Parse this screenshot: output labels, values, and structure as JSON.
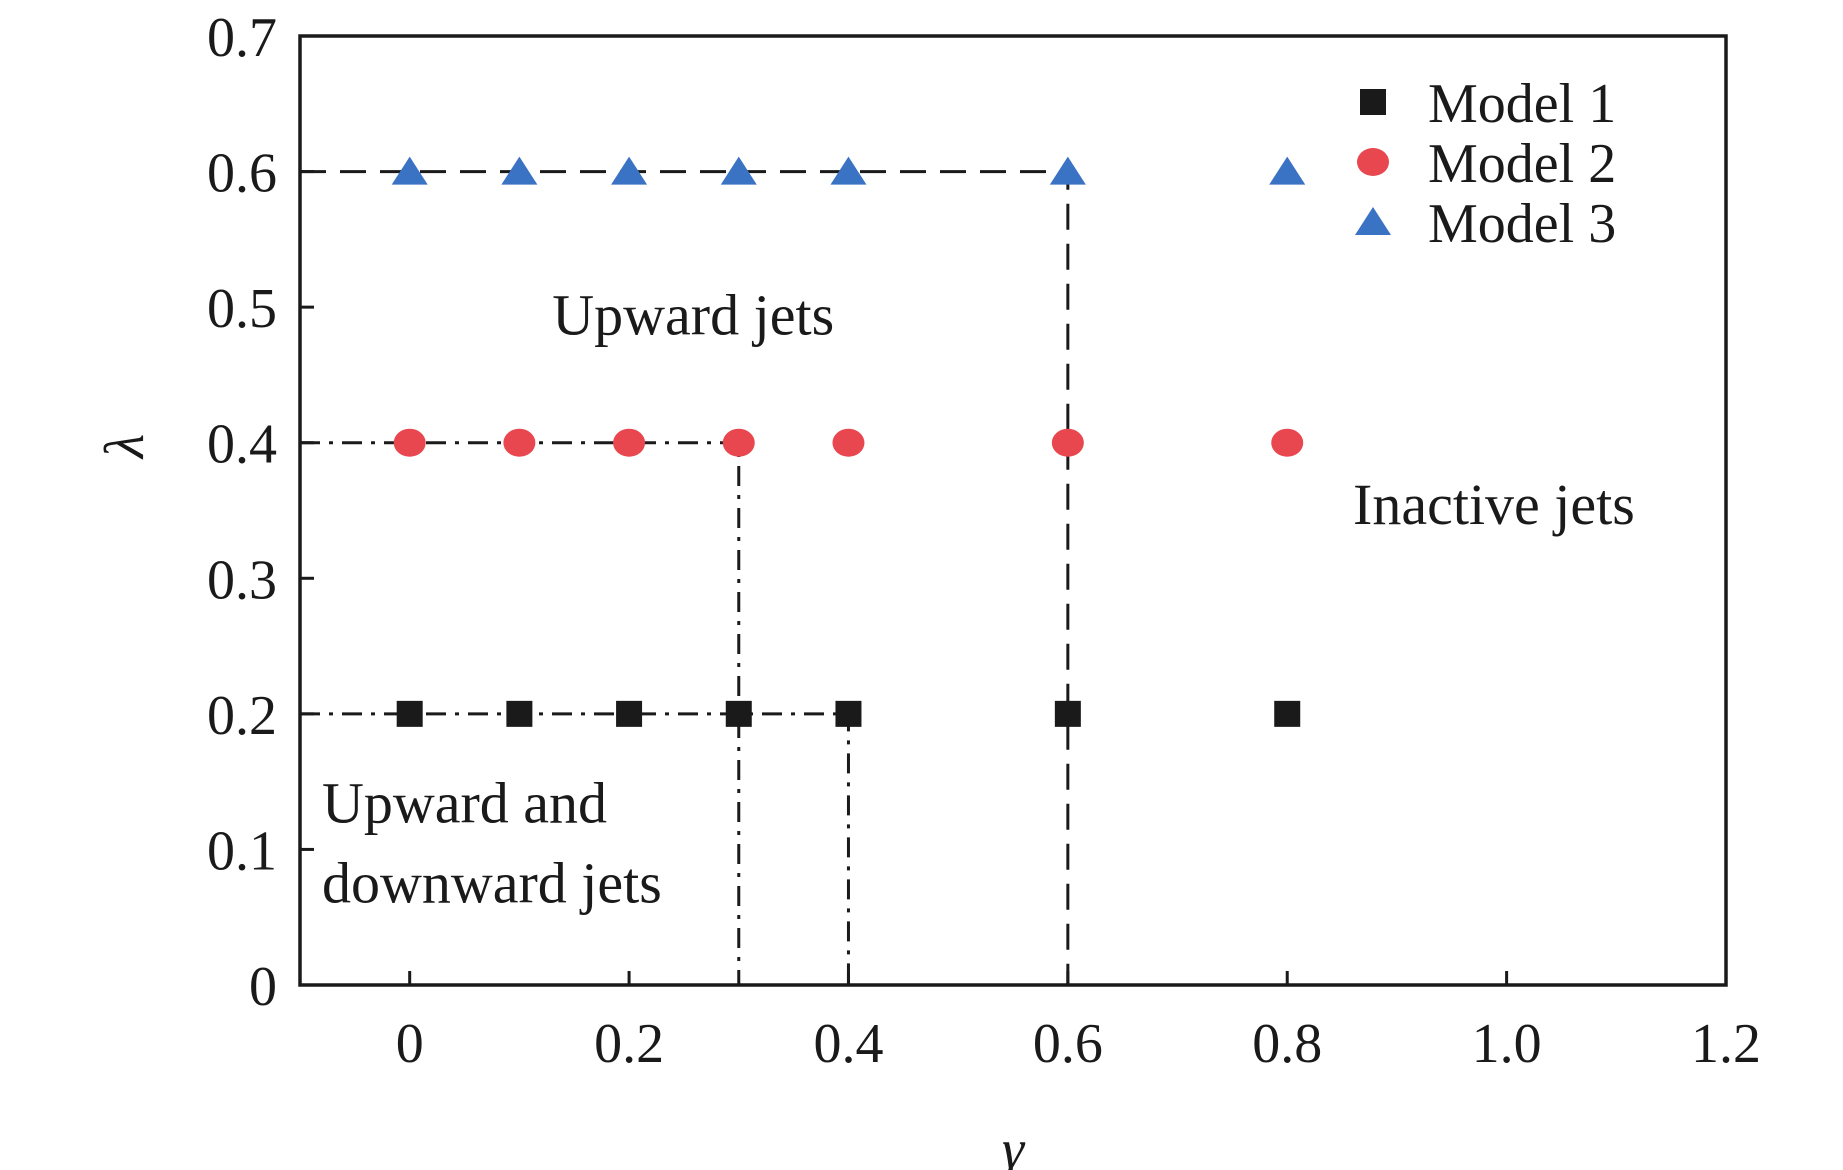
{
  "chart_data": {
    "type": "scatter",
    "title": "",
    "xlabel": "γ",
    "ylabel": "λ",
    "xlim": [
      -0.1,
      1.2
    ],
    "ylim": [
      0,
      0.7
    ],
    "xticks": [
      0,
      0.2,
      0.4,
      0.6,
      0.8,
      1.0,
      1.2
    ],
    "xtick_labels": [
      "0",
      "0.2",
      "0.4",
      "0.6",
      "0.8",
      "1.0",
      "1.2"
    ],
    "yticks": [
      0,
      0.1,
      0.2,
      0.3,
      0.4,
      0.5,
      0.6,
      0.7
    ],
    "ytick_labels": [
      "0",
      "0.1",
      "0.2",
      "0.3",
      "0.4",
      "0.5",
      "0.6",
      "0.7"
    ],
    "grid": false,
    "legend_position": "top-right",
    "series": [
      {
        "name": "Model 1",
        "marker": "square",
        "color": "#1a1a1a",
        "x": [
          0,
          0.1,
          0.2,
          0.3,
          0.4,
          0.6,
          0.8
        ],
        "y": [
          0.2,
          0.2,
          0.2,
          0.2,
          0.2,
          0.2,
          0.2
        ]
      },
      {
        "name": "Model 2",
        "marker": "circle",
        "color": "#e8474f",
        "x": [
          0,
          0.1,
          0.2,
          0.3,
          0.4,
          0.6,
          0.8
        ],
        "y": [
          0.4,
          0.4,
          0.4,
          0.4,
          0.4,
          0.4,
          0.4
        ]
      },
      {
        "name": "Model 3",
        "marker": "triangle",
        "color": "#3a72c4",
        "x": [
          0,
          0.1,
          0.2,
          0.3,
          0.4,
          0.6,
          0.8
        ],
        "y": [
          0.6,
          0.6,
          0.6,
          0.6,
          0.6,
          0.6,
          0.6
        ]
      }
    ],
    "boundaries": [
      {
        "name": "model-3-boundary",
        "style": "dashed",
        "points": [
          [
            -0.1,
            0.6
          ],
          [
            0.6,
            0.6
          ],
          [
            0.6,
            0
          ]
        ]
      },
      {
        "name": "model-2-boundary",
        "style": "dashdot",
        "points": [
          [
            -0.1,
            0.4
          ],
          [
            0.3,
            0.4
          ],
          [
            0.3,
            0
          ]
        ]
      },
      {
        "name": "model-1-boundary",
        "style": "dashdot",
        "points": [
          [
            -0.1,
            0.2
          ],
          [
            0.4,
            0.2
          ],
          [
            0.4,
            0
          ]
        ]
      }
    ],
    "annotations": [
      {
        "name": "region-upward-jets",
        "lines": [
          "Upward jets"
        ],
        "x": 0.13,
        "y": 0.48
      },
      {
        "name": "region-inactive-jets",
        "lines": [
          "Inactive jets"
        ],
        "x": 0.86,
        "y": 0.34
      },
      {
        "name": "region-upward-downward-jets",
        "lines": [
          "Upward and",
          "downward jets"
        ],
        "x": -0.08,
        "y": 0.12
      }
    ]
  }
}
